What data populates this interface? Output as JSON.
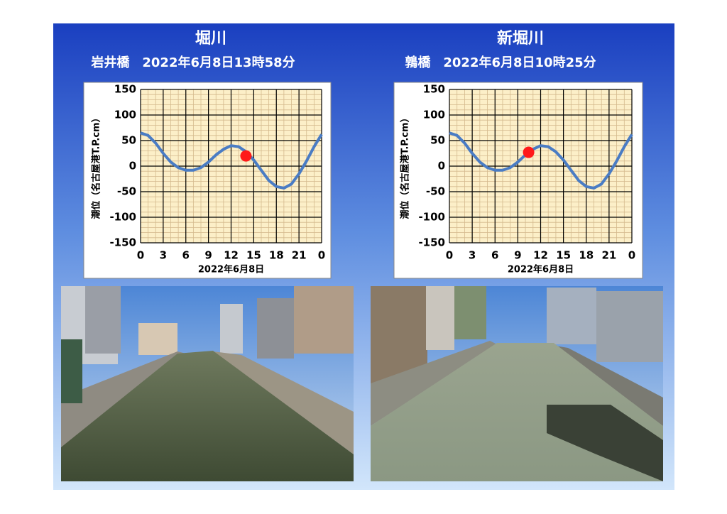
{
  "chart_data": [
    {
      "type": "line",
      "title": "堀川",
      "subtitle": "岩井橋　2022年6月8日13時58分",
      "x": [
        0,
        1,
        2,
        3,
        4,
        5,
        6,
        7,
        8,
        9,
        10,
        11,
        12,
        13,
        14,
        15,
        16,
        17,
        18,
        19,
        20,
        21,
        22,
        23,
        24
      ],
      "values": [
        65,
        60,
        45,
        25,
        8,
        -3,
        -8,
        -8,
        -3,
        8,
        22,
        33,
        40,
        38,
        28,
        12,
        -8,
        -28,
        -40,
        -43,
        -35,
        -15,
        10,
        38,
        62
      ],
      "color": "#4a7cc4",
      "marker": {
        "x": 13.97,
        "y": 20,
        "color": "#ff1a1a"
      },
      "xlim": [
        0,
        24
      ],
      "xticks": [
        0,
        3,
        6,
        9,
        12,
        15,
        18,
        21,
        {
          "value": 24,
          "label": "0"
        }
      ],
      "ylim": [
        -150,
        150
      ],
      "yticks": [
        -150,
        -100,
        -50,
        0,
        50,
        100,
        150
      ],
      "xlabel": "2022年6月8日",
      "ylabel": "潮位（名古屋港T.P.cm）",
      "grid": true,
      "minor_grid": true
    },
    {
      "type": "line",
      "title": "新堀川",
      "subtitle": "鶉橋　2022年6月8日10時25分",
      "x": [
        0,
        1,
        2,
        3,
        4,
        5,
        6,
        7,
        8,
        9,
        10,
        11,
        12,
        13,
        14,
        15,
        16,
        17,
        18,
        19,
        20,
        21,
        22,
        23,
        24
      ],
      "values": [
        65,
        60,
        45,
        25,
        8,
        -3,
        -8,
        -8,
        -3,
        8,
        22,
        33,
        40,
        38,
        28,
        12,
        -8,
        -28,
        -40,
        -43,
        -35,
        -15,
        10,
        38,
        62
      ],
      "color": "#4a7cc4",
      "marker": {
        "x": 10.42,
        "y": 27,
        "color": "#ff1a1a"
      },
      "xlim": [
        0,
        24
      ],
      "xticks": [
        0,
        3,
        6,
        9,
        12,
        15,
        18,
        21,
        {
          "value": 24,
          "label": "0"
        }
      ],
      "ylim": [
        -150,
        150
      ],
      "yticks": [
        -150,
        -100,
        -50,
        0,
        50,
        100,
        150
      ],
      "xlabel": "2022年6月8日",
      "ylabel": "潮位（名古屋港T.P.cm）",
      "grid": true,
      "minor_grid": true
    }
  ]
}
